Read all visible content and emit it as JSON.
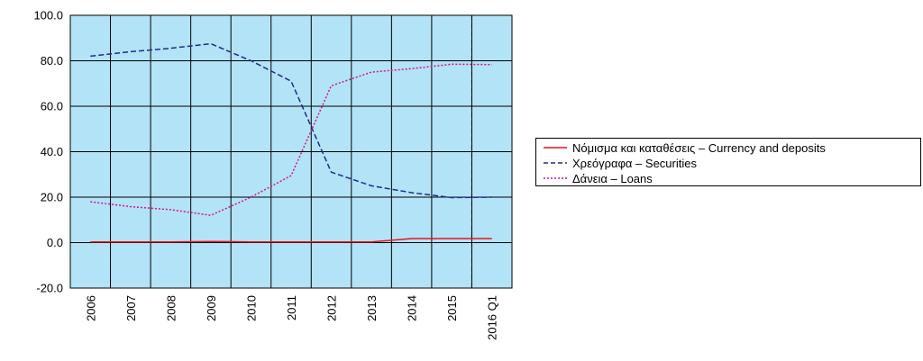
{
  "chart_data": {
    "type": "line",
    "categories": [
      "2006",
      "2007",
      "2008",
      "2009",
      "2010",
      "2011",
      "2012",
      "2013",
      "2014",
      "2015",
      "2016 Q1"
    ],
    "ylim": [
      -20,
      100
    ],
    "y_ticks": [
      "100.0",
      "80.0",
      "60.0",
      "40.0",
      "20.0",
      "0.0",
      "-20.0"
    ],
    "grid": true,
    "plot_background": "#b3e3f7",
    "legend_position": "right",
    "vertical_marker": {
      "between": [
        "2015",
        "2016 Q1"
      ],
      "style": "dashed"
    },
    "series": [
      {
        "name": "Νόμισμα και καταθέσεις – Currency and deposits",
        "color": "#e8141c",
        "style": "solid",
        "values": [
          0.3,
          0.3,
          0.3,
          0.5,
          0.3,
          0.3,
          0.3,
          0.3,
          1.8,
          1.8,
          1.8
        ]
      },
      {
        "name": "Χρεόγραφα – Securities",
        "color": "#1f2c8c",
        "style": "dashed",
        "values": [
          82.0,
          84.0,
          85.5,
          87.5,
          80.0,
          71.0,
          31.0,
          25.0,
          22.0,
          19.8,
          20.0
        ]
      },
      {
        "name": "Δάνεια – Loans",
        "color": "#d4148c",
        "style": "dotted",
        "values": [
          18.0,
          15.8,
          14.5,
          12.0,
          20.0,
          29.5,
          69.0,
          75.0,
          76.5,
          78.5,
          78.3
        ]
      }
    ]
  }
}
